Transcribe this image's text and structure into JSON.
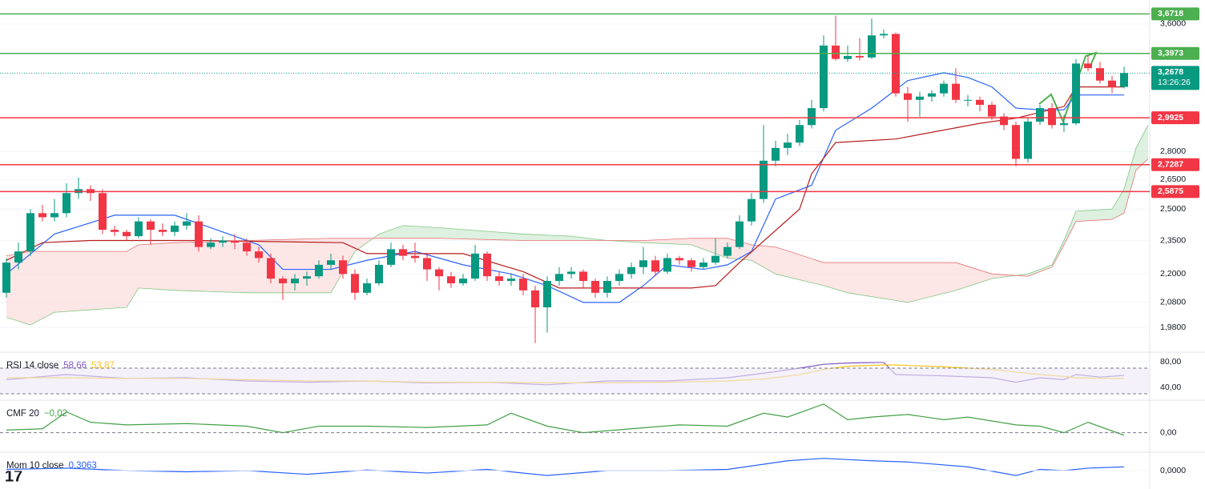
{
  "chart_data": [
    {
      "type": "candlestick",
      "log": true,
      "ylim": [
        1.886,
        3.774
      ],
      "up_color": "#089981",
      "down_color": "#f23645",
      "yticks": [
        {
          "value": 3.6,
          "label": "3,6000"
        },
        {
          "value": 2.8,
          "label": "2,8000"
        },
        {
          "value": 2.65,
          "label": "2,6500"
        },
        {
          "value": 2.5,
          "label": "2,5000"
        },
        {
          "value": 2.35,
          "label": "2,3500"
        },
        {
          "value": 2.2,
          "label": "2,2000"
        },
        {
          "value": 2.08,
          "label": "2,0800"
        },
        {
          "value": 1.98,
          "label": "1,9800"
        }
      ],
      "levels": [
        {
          "value": 3.6718,
          "label": "3,6718",
          "color": "#4caf50"
        },
        {
          "value": 3.3973,
          "label": "3,3973",
          "color": "#4caf50"
        },
        {
          "value": 2.9925,
          "label": "2,9925",
          "color": "#f23645"
        },
        {
          "value": 2.7287,
          "label": "2,7287",
          "color": "#f23645"
        },
        {
          "value": 2.5875,
          "label": "2,5875",
          "color": "#f23645"
        }
      ],
      "last_price": {
        "value": 3.2678,
        "label": "3,2678",
        "countdown": "13:26:26",
        "color": "#089981"
      },
      "candles": [
        [
          2.12,
          2.27,
          2.1,
          2.25
        ],
        [
          2.25,
          2.34,
          2.22,
          2.3
        ],
        [
          2.3,
          2.5,
          2.28,
          2.48
        ],
        [
          2.48,
          2.52,
          2.44,
          2.46
        ],
        [
          2.46,
          2.55,
          2.44,
          2.48
        ],
        [
          2.48,
          2.63,
          2.46,
          2.58
        ],
        [
          2.58,
          2.66,
          2.55,
          2.6
        ],
        [
          2.6,
          2.62,
          2.54,
          2.58
        ],
        [
          2.58,
          2.6,
          2.38,
          2.4
        ],
        [
          2.4,
          2.42,
          2.37,
          2.39
        ],
        [
          2.39,
          2.4,
          2.35,
          2.37
        ],
        [
          2.37,
          2.46,
          2.36,
          2.44
        ],
        [
          2.44,
          2.45,
          2.33,
          2.4
        ],
        [
          2.4,
          2.43,
          2.37,
          2.39
        ],
        [
          2.39,
          2.44,
          2.37,
          2.42
        ],
        [
          2.42,
          2.48,
          2.4,
          2.44
        ],
        [
          2.44,
          2.47,
          2.3,
          2.32
        ],
        [
          2.32,
          2.36,
          2.31,
          2.34
        ],
        [
          2.34,
          2.37,
          2.32,
          2.35
        ],
        [
          2.35,
          2.38,
          2.31,
          2.34
        ],
        [
          2.34,
          2.36,
          2.28,
          2.3
        ],
        [
          2.3,
          2.32,
          2.25,
          2.27
        ],
        [
          2.27,
          2.29,
          2.16,
          2.18
        ],
        [
          2.18,
          2.19,
          2.09,
          2.16
        ],
        [
          2.16,
          2.2,
          2.13,
          2.18
        ],
        [
          2.18,
          2.21,
          2.15,
          2.19
        ],
        [
          2.19,
          2.26,
          2.18,
          2.24
        ],
        [
          2.24,
          2.29,
          2.22,
          2.26
        ],
        [
          2.26,
          2.28,
          2.18,
          2.2
        ],
        [
          2.2,
          2.22,
          2.09,
          2.12
        ],
        [
          2.12,
          2.18,
          2.11,
          2.16
        ],
        [
          2.16,
          2.26,
          2.15,
          2.24
        ],
        [
          2.24,
          2.34,
          2.23,
          2.31
        ],
        [
          2.31,
          2.33,
          2.26,
          2.28
        ],
        [
          2.28,
          2.34,
          2.25,
          2.27
        ],
        [
          2.27,
          2.29,
          2.17,
          2.22
        ],
        [
          2.22,
          2.23,
          2.13,
          2.19
        ],
        [
          2.19,
          2.21,
          2.14,
          2.16
        ],
        [
          2.16,
          2.2,
          2.15,
          2.18
        ],
        [
          2.18,
          2.33,
          2.17,
          2.29
        ],
        [
          2.29,
          2.3,
          2.17,
          2.19
        ],
        [
          2.19,
          2.21,
          2.15,
          2.17
        ],
        [
          2.17,
          2.2,
          2.15,
          2.18
        ],
        [
          2.18,
          2.2,
          2.11,
          2.13
        ],
        [
          2.13,
          2.15,
          1.92,
          2.06
        ],
        [
          2.06,
          2.19,
          1.96,
          2.17
        ],
        [
          2.17,
          2.23,
          2.15,
          2.2
        ],
        [
          2.2,
          2.23,
          2.18,
          2.21
        ],
        [
          2.21,
          2.22,
          2.14,
          2.17
        ],
        [
          2.17,
          2.18,
          2.1,
          2.12
        ],
        [
          2.12,
          2.19,
          2.1,
          2.17
        ],
        [
          2.17,
          2.22,
          2.15,
          2.2
        ],
        [
          2.2,
          2.25,
          2.18,
          2.23
        ],
        [
          2.23,
          2.32,
          2.2,
          2.26
        ],
        [
          2.26,
          2.28,
          2.19,
          2.21
        ],
        [
          2.21,
          2.29,
          2.2,
          2.27
        ],
        [
          2.27,
          2.28,
          2.24,
          2.26
        ],
        [
          2.26,
          2.27,
          2.21,
          2.23
        ],
        [
          2.23,
          2.27,
          2.22,
          2.25
        ],
        [
          2.25,
          2.36,
          2.24,
          2.28
        ],
        [
          2.28,
          2.34,
          2.27,
          2.32
        ],
        [
          2.32,
          2.47,
          2.31,
          2.44
        ],
        [
          2.44,
          2.58,
          2.42,
          2.55
        ],
        [
          2.55,
          2.95,
          2.53,
          2.75
        ],
        [
          2.75,
          2.86,
          2.72,
          2.82
        ],
        [
          2.82,
          2.9,
          2.78,
          2.85
        ],
        [
          2.85,
          2.98,
          2.83,
          2.95
        ],
        [
          2.95,
          3.1,
          2.93,
          3.05
        ],
        [
          3.05,
          3.52,
          3.03,
          3.45
        ],
        [
          3.45,
          3.66,
          3.35,
          3.36
        ],
        [
          3.36,
          3.45,
          3.34,
          3.38
        ],
        [
          3.38,
          3.5,
          3.35,
          3.37
        ],
        [
          3.37,
          3.64,
          3.36,
          3.52
        ],
        [
          3.52,
          3.56,
          3.5,
          3.53
        ],
        [
          3.53,
          3.54,
          3.12,
          3.14
        ],
        [
          3.14,
          3.18,
          2.97,
          3.1
        ],
        [
          3.1,
          3.15,
          3.0,
          3.12
        ],
        [
          3.12,
          3.16,
          3.09,
          3.14
        ],
        [
          3.14,
          3.22,
          3.12,
          3.2
        ],
        [
          3.2,
          3.3,
          3.08,
          3.1
        ],
        [
          3.1,
          3.13,
          3.06,
          3.1
        ],
        [
          3.1,
          3.12,
          3.03,
          3.07
        ],
        [
          3.07,
          3.09,
          2.98,
          3.0
        ],
        [
          3.0,
          3.02,
          2.92,
          2.95
        ],
        [
          2.95,
          2.97,
          2.72,
          2.76
        ],
        [
          2.76,
          2.99,
          2.74,
          2.97
        ],
        [
          2.97,
          3.07,
          2.95,
          3.05
        ],
        [
          3.05,
          3.08,
          2.93,
          2.95
        ],
        [
          2.95,
          3.01,
          2.91,
          2.96
        ],
        [
          2.96,
          3.36,
          2.95,
          3.33
        ],
        [
          3.33,
          3.38,
          3.28,
          3.3
        ],
        [
          3.3,
          3.34,
          3.2,
          3.22
        ],
        [
          3.22,
          3.25,
          3.14,
          3.18
        ],
        [
          3.18,
          3.31,
          3.17,
          3.2678
        ]
      ],
      "cloud": {
        "up_color": "#c8e6c9",
        "down_color": "#fbd5d5",
        "a_color": "#81c784",
        "b_color": "#e57373",
        "x": [
          0,
          2,
          4,
          10,
          11,
          14,
          20,
          27,
          29,
          31,
          33,
          36,
          43,
          47,
          50,
          53,
          57,
          60,
          62,
          64,
          68,
          70,
          75,
          79,
          82,
          85,
          87,
          88,
          89,
          92,
          93,
          94,
          95
        ],
        "span_a": [
          2.02,
          1.99,
          2.04,
          2.06,
          2.14,
          2.13,
          2.12,
          2.12,
          2.3,
          2.38,
          2.42,
          2.41,
          2.38,
          2.37,
          2.35,
          2.34,
          2.33,
          2.27,
          2.26,
          2.2,
          2.15,
          2.12,
          2.08,
          2.13,
          2.18,
          2.2,
          2.24,
          2.35,
          2.49,
          2.5,
          2.6,
          2.82,
          2.95
        ],
        "span_b": [
          2.28,
          2.3,
          2.3,
          2.3,
          2.33,
          2.34,
          2.35,
          2.36,
          2.36,
          2.36,
          2.36,
          2.36,
          2.35,
          2.35,
          2.35,
          2.35,
          2.36,
          2.36,
          2.33,
          2.32,
          2.25,
          2.25,
          2.25,
          2.25,
          2.2,
          2.19,
          2.23,
          2.33,
          2.44,
          2.45,
          2.48,
          2.7,
          2.76
        ]
      },
      "lines": [
        {
          "color": "#2962ff",
          "x": [
            0,
            4,
            9,
            14,
            17,
            21,
            23,
            27,
            30,
            34,
            38,
            42,
            45,
            48,
            51,
            53,
            55,
            58,
            60,
            62,
            64,
            67,
            69,
            72,
            75,
            78,
            80,
            82,
            84,
            86,
            88,
            89,
            93
          ],
          "values": [
            2.2,
            2.38,
            2.47,
            2.47,
            2.41,
            2.33,
            2.22,
            2.22,
            2.26,
            2.3,
            2.24,
            2.2,
            2.15,
            2.08,
            2.08,
            2.15,
            2.24,
            2.22,
            2.24,
            2.3,
            2.55,
            2.62,
            2.92,
            3.05,
            3.22,
            3.27,
            3.24,
            3.18,
            3.05,
            3.04,
            3.04,
            3.13,
            3.13
          ]
        },
        {
          "color": "#b71c1c",
          "x": [
            0,
            3,
            7,
            16,
            28,
            30,
            38,
            43,
            46,
            57,
            59,
            61,
            66,
            67,
            69,
            74,
            81,
            84,
            88,
            89,
            93
          ],
          "values": [
            2.26,
            2.34,
            2.35,
            2.35,
            2.34,
            2.29,
            2.29,
            2.21,
            2.14,
            2.14,
            2.15,
            2.25,
            2.5,
            2.68,
            2.85,
            2.87,
            2.96,
            2.99,
            3.06,
            3.18,
            3.18
          ]
        }
      ]
    },
    {
      "type": "line",
      "title": "RSI 14 close",
      "ylim": [
        20,
        95
      ],
      "yticks": [
        {
          "value": 80,
          "label": "80,00"
        },
        {
          "value": 40,
          "label": "40,00"
        }
      ],
      "band": [
        30,
        70
      ],
      "band_color": "#ede7f6",
      "series": [
        {
          "color": "#7e57c2",
          "x": [
            0,
            5,
            10,
            15,
            20,
            25,
            30,
            35,
            40,
            45,
            50,
            55,
            60,
            63,
            66,
            68,
            70,
            73,
            74,
            78,
            82,
            84,
            86,
            88,
            89,
            91,
            93
          ],
          "values": [
            52,
            60,
            54,
            55,
            50,
            48,
            50,
            47,
            48,
            44,
            50,
            50,
            55,
            62,
            70,
            76,
            78,
            79,
            60,
            58,
            55,
            48,
            55,
            52,
            60,
            56,
            58.66
          ],
          "readout": {
            "value": 58.66,
            "label": "58,66"
          }
        },
        {
          "color": "#f9c31b",
          "x": [
            0,
            5,
            10,
            15,
            20,
            25,
            30,
            35,
            40,
            45,
            50,
            55,
            60,
            63,
            66,
            68,
            70,
            73,
            74,
            78,
            82,
            84,
            86,
            88,
            89,
            91,
            93
          ],
          "values": [
            55,
            55,
            54,
            54,
            52,
            50,
            50,
            48,
            48,
            47,
            47,
            48,
            50,
            53,
            60,
            68,
            73,
            75,
            75,
            72,
            68,
            64,
            60,
            57,
            55,
            54,
            53.87
          ],
          "readout": {
            "value": 53.87,
            "label": "53,87"
          }
        }
      ]
    },
    {
      "type": "line",
      "title": "CMF 20",
      "ylim": [
        -0.15,
        0.25
      ],
      "yticks": [
        {
          "value": 0,
          "label": "0,00"
        }
      ],
      "zero_dashed": true,
      "series": [
        {
          "color": "#43a047",
          "x": [
            0,
            3,
            5,
            7,
            10,
            15,
            20,
            23,
            26,
            30,
            35,
            40,
            42,
            45,
            48,
            52,
            56,
            60,
            63,
            65,
            68,
            70,
            72,
            75,
            78,
            80,
            84,
            86,
            88,
            90,
            93
          ],
          "values": [
            0.02,
            0.03,
            0.16,
            0.08,
            0.06,
            0.07,
            0.05,
            0.0,
            0.05,
            0.05,
            0.04,
            0.06,
            0.15,
            0.05,
            0.0,
            0.03,
            0.06,
            0.05,
            0.15,
            0.12,
            0.22,
            0.1,
            0.12,
            0.14,
            0.1,
            0.12,
            0.06,
            0.05,
            0.0,
            0.08,
            -0.02
          ],
          "readout": {
            "value": -0.02,
            "label": "−0,02"
          }
        }
      ]
    },
    {
      "type": "line",
      "title": "Mom 10 close",
      "ylim": [
        -1.5,
        1.5
      ],
      "yticks": [
        {
          "value": 0,
          "label": "0,0000"
        }
      ],
      "zero_dashed": false,
      "series": [
        {
          "color": "#2962ff",
          "x": [
            0,
            5,
            10,
            15,
            20,
            25,
            30,
            35,
            40,
            45,
            50,
            55,
            60,
            65,
            68,
            72,
            75,
            80,
            84,
            86,
            88,
            90,
            93
          ],
          "values": [
            0.1,
            0.2,
            0.0,
            -0.1,
            0.0,
            -0.3,
            0.05,
            -0.2,
            0.1,
            -0.4,
            0.0,
            0.0,
            0.1,
            0.8,
            1.0,
            0.8,
            0.7,
            0.3,
            -0.4,
            0.1,
            0.0,
            0.2,
            0.3063
          ],
          "readout": {
            "value": 0.3063,
            "label": "0,3063"
          }
        }
      ]
    }
  ]
}
